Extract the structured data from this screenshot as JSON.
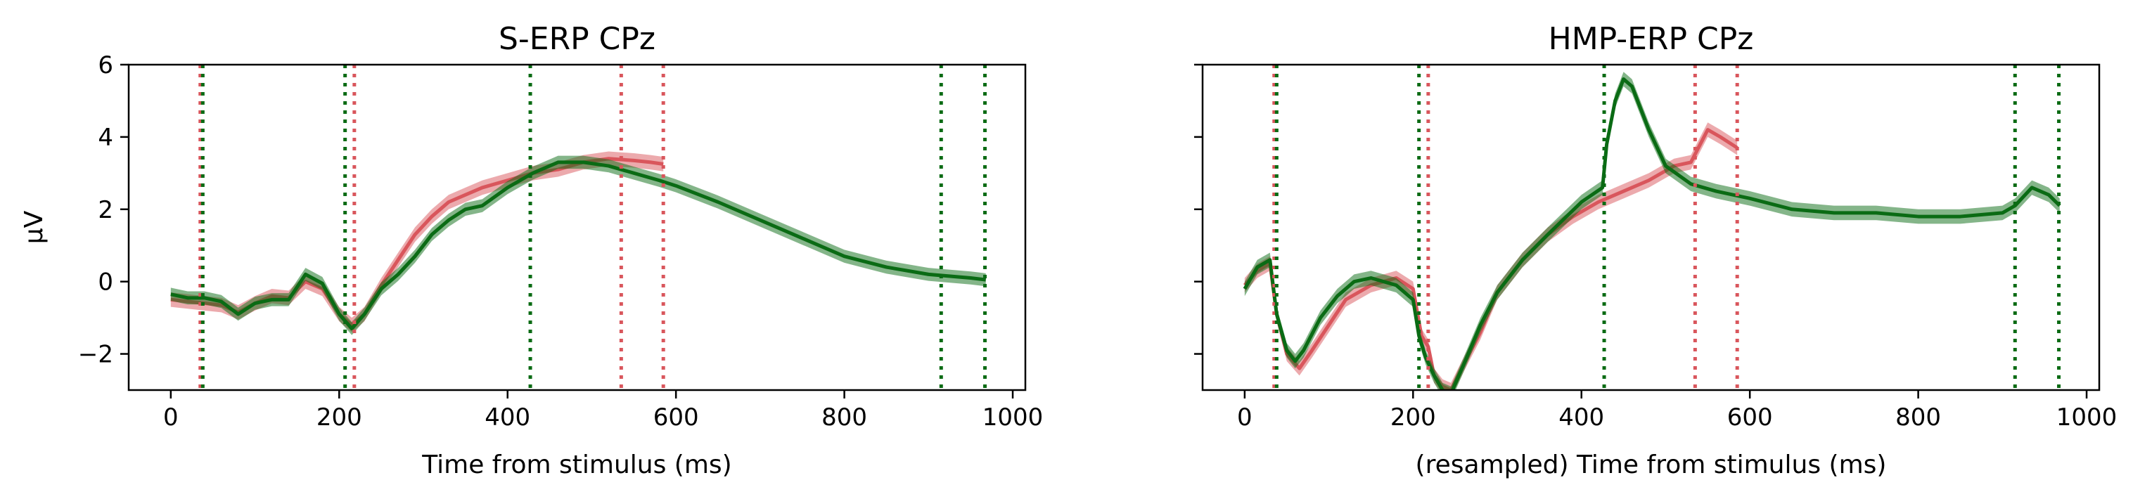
{
  "colors": {
    "red": "#d9565c",
    "green": "#0a6b14"
  },
  "chart_data": [
    {
      "type": "line",
      "title": "S-ERP CPz",
      "xlabel": "Time from stimulus (ms)",
      "ylabel": "μV",
      "xlim": [
        -50,
        1015
      ],
      "ylim": [
        -3,
        6
      ],
      "xticks": [
        0,
        200,
        400,
        600,
        800,
        1000
      ],
      "yticks": [
        -2,
        0,
        2,
        4,
        6
      ],
      "ytick_labels": [
        "−2",
        "0",
        "2",
        "4",
        "6"
      ],
      "grid": false,
      "series": [
        {
          "color": "red",
          "band": 0.2,
          "x": [
            0,
            20,
            40,
            60,
            80,
            100,
            120,
            140,
            160,
            180,
            200,
            215,
            230,
            250,
            270,
            290,
            310,
            330,
            350,
            370,
            400,
            430,
            460,
            490,
            520,
            550,
            570,
            585
          ],
          "y": [
            -0.5,
            -0.55,
            -0.6,
            -0.65,
            -0.85,
            -0.6,
            -0.4,
            -0.45,
            0.0,
            -0.2,
            -0.9,
            -1.2,
            -0.9,
            -0.1,
            0.6,
            1.3,
            1.8,
            2.2,
            2.4,
            2.6,
            2.8,
            3.0,
            3.1,
            3.3,
            3.4,
            3.35,
            3.3,
            3.25
          ]
        },
        {
          "color": "green",
          "band": 0.18,
          "x": [
            0,
            20,
            40,
            60,
            80,
            100,
            120,
            140,
            160,
            180,
            200,
            215,
            230,
            250,
            270,
            290,
            310,
            330,
            350,
            370,
            400,
            430,
            460,
            490,
            520,
            550,
            580,
            600,
            650,
            700,
            750,
            800,
            850,
            900,
            950,
            968
          ],
          "y": [
            -0.35,
            -0.45,
            -0.45,
            -0.55,
            -0.9,
            -0.6,
            -0.5,
            -0.5,
            0.2,
            -0.05,
            -0.9,
            -1.3,
            -0.9,
            -0.2,
            0.2,
            0.7,
            1.3,
            1.7,
            2.0,
            2.1,
            2.6,
            3.0,
            3.3,
            3.3,
            3.2,
            3.0,
            2.8,
            2.65,
            2.2,
            1.7,
            1.2,
            0.7,
            0.4,
            0.2,
            0.1,
            0.05
          ]
        }
      ],
      "vlines": [
        {
          "x": 35,
          "color": "red"
        },
        {
          "x": 218,
          "color": "red"
        },
        {
          "x": 535,
          "color": "red"
        },
        {
          "x": 585,
          "color": "red"
        },
        {
          "x": 38,
          "color": "green"
        },
        {
          "x": 207,
          "color": "green"
        },
        {
          "x": 427,
          "color": "green"
        },
        {
          "x": 915,
          "color": "green"
        },
        {
          "x": 967,
          "color": "green"
        }
      ]
    },
    {
      "type": "line",
      "title": "HMP-ERP CPz",
      "xlabel": "(resampled) Time from stimulus (ms)",
      "ylabel": "",
      "xlim": [
        -50,
        1015
      ],
      "ylim": [
        -3,
        6
      ],
      "xticks": [
        0,
        200,
        400,
        600,
        800,
        1000
      ],
      "yticks": [
        -2,
        0,
        2,
        4,
        6
      ],
      "ytick_labels": [
        "",
        "",
        "",
        "",
        ""
      ],
      "grid": false,
      "series": [
        {
          "color": "red",
          "band": 0.2,
          "x": [
            0,
            15,
            30,
            38,
            50,
            65,
            80,
            100,
            120,
            150,
            180,
            200,
            210,
            218,
            225,
            235,
            245,
            260,
            280,
            300,
            330,
            360,
            390,
            420,
            450,
            480,
            510,
            530,
            550,
            565,
            585
          ],
          "y": [
            -0.1,
            0.3,
            0.5,
            -0.9,
            -2.0,
            -2.4,
            -1.9,
            -1.2,
            -0.5,
            -0.1,
            0.1,
            -0.2,
            -1.5,
            -1.8,
            -2.6,
            -2.9,
            -3.0,
            -2.3,
            -1.4,
            -0.3,
            0.6,
            1.3,
            1.8,
            2.2,
            2.5,
            2.8,
            3.2,
            3.3,
            4.2,
            4.0,
            3.7
          ]
        },
        {
          "color": "green",
          "band": 0.2,
          "x": [
            0,
            15,
            30,
            38,
            50,
            60,
            70,
            90,
            110,
            130,
            150,
            180,
            200,
            207,
            215,
            225,
            235,
            245,
            260,
            280,
            300,
            330,
            360,
            400,
            425,
            430,
            440,
            450,
            460,
            480,
            500,
            530,
            560,
            600,
            650,
            700,
            750,
            800,
            850,
            900,
            915,
            935,
            955,
            968
          ],
          "y": [
            -0.2,
            0.4,
            0.6,
            -0.9,
            -1.9,
            -2.2,
            -1.9,
            -1.0,
            -0.4,
            0.0,
            0.1,
            -0.1,
            -0.5,
            -1.5,
            -2.1,
            -2.6,
            -3.0,
            -3.1,
            -2.3,
            -1.2,
            -0.3,
            0.6,
            1.3,
            2.2,
            2.6,
            3.8,
            5.0,
            5.6,
            5.4,
            4.2,
            3.2,
            2.7,
            2.5,
            2.3,
            2.0,
            1.9,
            1.9,
            1.8,
            1.8,
            1.9,
            2.1,
            2.6,
            2.4,
            2.1
          ]
        }
      ],
      "vlines": [
        {
          "x": 35,
          "color": "red"
        },
        {
          "x": 218,
          "color": "red"
        },
        {
          "x": 535,
          "color": "red"
        },
        {
          "x": 585,
          "color": "red"
        },
        {
          "x": 38,
          "color": "green"
        },
        {
          "x": 207,
          "color": "green"
        },
        {
          "x": 427,
          "color": "green"
        },
        {
          "x": 915,
          "color": "green"
        },
        {
          "x": 967,
          "color": "green"
        }
      ]
    }
  ]
}
